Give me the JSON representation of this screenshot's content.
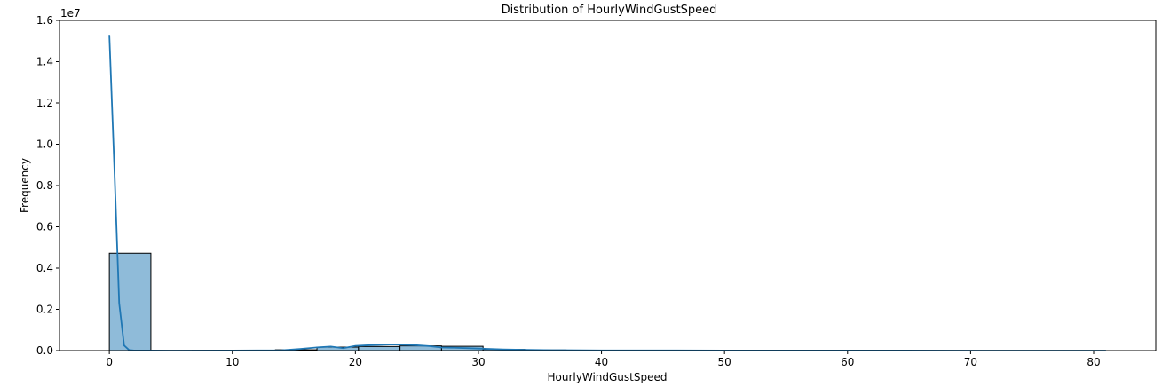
{
  "chart_data": {
    "type": "histogram",
    "title": "Distribution of HourlyWindGustSpeed",
    "xlabel": "HourlyWindGustSpeed",
    "ylabel": "Frequency",
    "y_offset_text": "1e7",
    "xlim": [
      -4.05,
      85.05
    ],
    "ylim": [
      0,
      16000000
    ],
    "xticks": [
      0,
      10,
      20,
      30,
      40,
      50,
      60,
      70,
      80
    ],
    "yticks": [
      0,
      2000000,
      4000000,
      6000000,
      8000000,
      10000000,
      12000000,
      14000000,
      16000000
    ],
    "ytick_labels": [
      "0.0",
      "0.2",
      "0.4",
      "0.6",
      "0.8",
      "1.0",
      "1.2",
      "1.4",
      "1.6"
    ],
    "grid": false,
    "bin_edges": [
      0,
      3.375,
      6.75,
      10.125,
      13.5,
      16.875,
      20.25,
      23.625,
      27,
      30.375,
      33.75,
      37.125,
      40.5,
      43.875,
      47.25,
      50.625,
      54,
      57.375,
      60.75,
      64.125,
      67.5,
      70.875,
      74.25,
      77.625,
      81
    ],
    "bin_counts": [
      4720000,
      5000,
      8000,
      15000,
      40000,
      170000,
      200000,
      230000,
      210000,
      60000,
      30000,
      15000,
      8000,
      5000,
      3000,
      2500,
      2000,
      1500,
      1000,
      800,
      600,
      500,
      400,
      300
    ],
    "bar_color": "#1f77b4",
    "kde": {
      "x": [
        0,
        0.4,
        0.8,
        1.2,
        1.6,
        2.0,
        3.0,
        5.0,
        10.0,
        14.0,
        15.5,
        17.0,
        18.0,
        19.0,
        20.0,
        21.0,
        22.0,
        23.0,
        24.0,
        25.0,
        26.0,
        27.0,
        28.0,
        29.0,
        30.0,
        32.0,
        34.0,
        36.0,
        40.0,
        45.0,
        50.0,
        60.0,
        70.0,
        81.0
      ],
      "y": [
        15300000,
        9000000,
        2300000,
        250000,
        30000,
        5000,
        2000,
        1000,
        2000,
        15000,
        80000,
        160000,
        200000,
        120000,
        230000,
        260000,
        280000,
        300000,
        280000,
        260000,
        220000,
        150000,
        140000,
        120000,
        100000,
        60000,
        35000,
        20000,
        12000,
        8000,
        5000,
        2500,
        1500,
        800
      ],
      "color": "#1f77b4"
    }
  }
}
